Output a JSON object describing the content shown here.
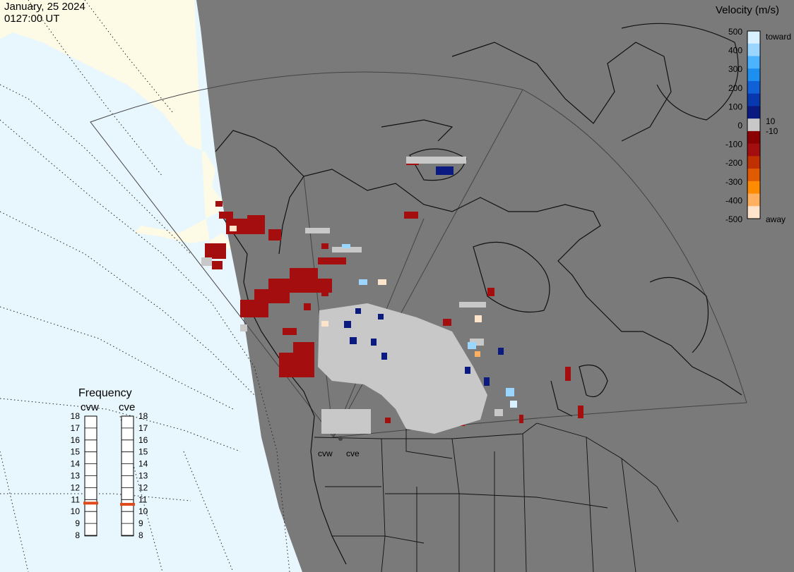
{
  "header": {
    "date": "January, 25 2024",
    "time": "0127:00 UT"
  },
  "legend": {
    "title": "Velocity (m/s)",
    "ticks": [
      "500",
      "400",
      "300",
      "200",
      "100",
      "0",
      "-100",
      "-200",
      "-300",
      "-400",
      "-500"
    ],
    "near_zero_labels": [
      "10",
      "-10"
    ],
    "end_labels": {
      "toward": "toward",
      "away": "away"
    },
    "colors": [
      "#ffe4cc",
      "#ffb060",
      "#ff8c00",
      "#e05a00",
      "#c03000",
      "#a50e0e",
      "#8b0000",
      "#c8c8c8",
      "#0a1a80",
      "#0838b0",
      "#1060d8",
      "#1c8ff0",
      "#4cb4ff",
      "#9ad6ff",
      "#d8f0ff"
    ]
  },
  "frequency": {
    "title": "Frequency",
    "radars": [
      "cvw",
      "cve"
    ],
    "ticks": [
      "18",
      "17",
      "16",
      "15",
      "14",
      "13",
      "12",
      "11",
      "10",
      "9",
      "8"
    ],
    "markers": {
      "cvw": 10.7,
      "cve": 10.6
    }
  },
  "map": {
    "radar_labels": [
      "cvw",
      "cve"
    ],
    "colors": {
      "ocean": "#e8f6fd",
      "land_lit": "#fdfbe6",
      "night": "#7a7a7a",
      "low_velocity": "#c8c8c8",
      "boundary": "#111111"
    }
  }
}
